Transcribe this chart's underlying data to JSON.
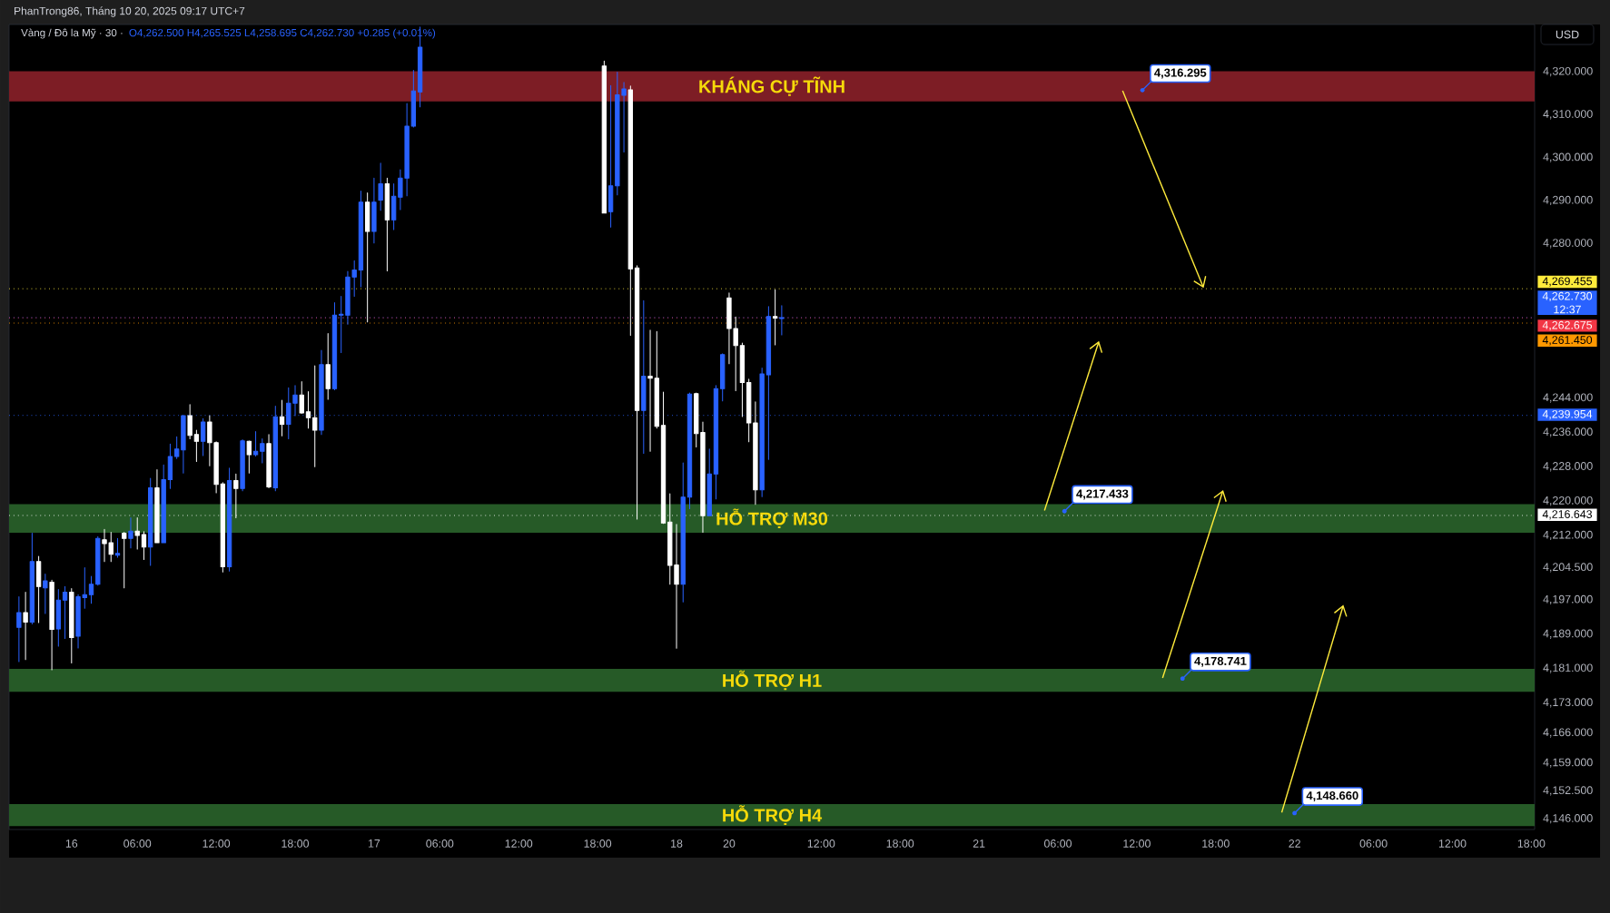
{
  "chart_data": {
    "type": "candlestick",
    "title": "Vàng / Đô la Mỹ · 30 ·",
    "subtitle": "O4,262.500 H4,265.525 L4,258.695 C4,262.730 +0.285 (+0.01%)",
    "categories": [
      null,
      null,
      null,
      null,
      null,
      null,
      null,
      null,
      null,
      "16",
      null,
      null,
      null,
      null,
      null,
      null,
      null,
      null,
      null,
      "06:00",
      null,
      null,
      null,
      null,
      null,
      null,
      null,
      null,
      null,
      null,
      null,
      "12:00",
      null,
      null,
      null,
      null,
      null,
      null,
      null,
      null,
      null,
      null,
      null,
      "18:00",
      null,
      null,
      null,
      null,
      null,
      null,
      null,
      null,
      null,
      null,
      null,
      "17",
      null,
      null,
      null,
      null,
      null,
      null,
      null,
      null,
      null,
      "06:00",
      null,
      null,
      null,
      null,
      null,
      null,
      null,
      null,
      null,
      null,
      null,
      "12:00",
      null,
      null,
      null,
      null,
      null,
      null,
      null,
      null,
      null,
      null,
      null,
      "18:00",
      null,
      null,
      null,
      null,
      null,
      null,
      null,
      null,
      null,
      null,
      null,
      "18",
      null,
      null,
      null,
      null,
      null,
      null,
      null,
      "20",
      null,
      null,
      null,
      null,
      null,
      null,
      null,
      null,
      null,
      null,
      null,
      null,
      null,
      "12:00",
      null,
      null,
      null,
      null,
      null,
      null,
      null,
      null,
      null,
      null,
      null,
      "18:00",
      null,
      null,
      null,
      null,
      null,
      null,
      null,
      null,
      null,
      null,
      null,
      "21",
      null,
      null,
      null,
      null,
      null,
      null,
      null,
      null,
      null,
      null,
      null,
      "06:00",
      null,
      null,
      null,
      null,
      null,
      null,
      null,
      null,
      null,
      null,
      null,
      "12:00",
      null,
      null,
      null,
      null,
      null,
      null,
      null,
      null,
      null,
      null,
      null,
      "18:00",
      null,
      null,
      null,
      null,
      null,
      null,
      null,
      null,
      null,
      null,
      null,
      "22",
      null,
      null,
      null,
      null,
      null,
      null,
      null,
      null,
      null,
      null,
      null,
      "06:00",
      null,
      null,
      null,
      null,
      null,
      null,
      null,
      null,
      null,
      null,
      null,
      "12:00",
      null,
      null,
      null,
      null,
      null,
      null,
      null,
      null,
      null,
      null,
      null,
      "18:00"
    ],
    "ohlc": [
      null,
      [
        4190.6,
        4197.7,
        4182.6,
        4194.0
      ],
      [
        4194.0,
        4198.8,
        4183.1,
        4191.8
      ],
      [
        4191.8,
        4212.5,
        4191.4,
        4205.9
      ],
      [
        4205.9,
        4207.1,
        4191.7,
        4200.1
      ],
      [
        4199.8,
        4203.0,
        4193.8,
        4201.4
      ],
      [
        4201.1,
        4201.6,
        4180.7,
        4190.1
      ],
      [
        4190.2,
        4199.4,
        4186.2,
        4196.9
      ],
      [
        4196.9,
        4200.1,
        4188.0,
        4198.8
      ],
      [
        4198.8,
        4199.6,
        4182.3,
        4188.2
      ],
      [
        4188.5,
        4198.2,
        4185.8,
        4197.7
      ],
      [
        4197.5,
        4204.5,
        4195.0,
        4198.2
      ],
      [
        4198.2,
        4202.5,
        4196.2,
        4200.6
      ],
      [
        4200.6,
        4211.7,
        4200.4,
        4211.3
      ],
      [
        4211.0,
        4213.4,
        4205.9,
        4210.1
      ],
      [
        4210.3,
        4212.7,
        4205.9,
        4207.6
      ],
      [
        4207.4,
        4211.3,
        4206.9,
        4207.8
      ],
      [
        4212.5,
        4212.7,
        4199.8,
        4211.3
      ],
      [
        4211.3,
        4216.1,
        4209.1,
        4213.0
      ],
      [
        4213.0,
        4216.1,
        4208.8,
        4212.0
      ],
      [
        4212.2,
        4212.9,
        4206.4,
        4209.3
      ],
      [
        4209.3,
        4225.3,
        4205.0,
        4223.1
      ],
      [
        4223.1,
        4227.3,
        4210.3,
        4210.3
      ],
      [
        4210.3,
        4228.4,
        4210.3,
        4225.0
      ],
      [
        4225.0,
        4233.3,
        4222.9,
        4230.4
      ],
      [
        4230.4,
        4235.0,
        4229.9,
        4232.1
      ],
      [
        4231.9,
        4239.9,
        4226.5,
        4239.9
      ],
      [
        4239.9,
        4242.5,
        4234.5,
        4235.3
      ],
      [
        4235.5,
        4236.5,
        4229.2,
        4233.9
      ],
      [
        4233.9,
        4239.2,
        4230.6,
        4238.4
      ],
      [
        4238.4,
        4239.9,
        4228.2,
        4233.6
      ],
      [
        4233.6,
        4233.8,
        4221.9,
        4223.9
      ],
      [
        4224.0,
        4224.3,
        4203.5,
        4204.7
      ],
      [
        4204.7,
        4227.7,
        4203.7,
        4224.8
      ],
      [
        4224.8,
        4226.3,
        4216.1,
        4222.9
      ],
      [
        4222.9,
        4234.3,
        4222.4,
        4234.0
      ],
      [
        4233.9,
        4234.0,
        4226.5,
        4230.8
      ],
      [
        4230.8,
        4236.2,
        4230.5,
        4231.6
      ],
      [
        4231.6,
        4234.5,
        4228.9,
        4233.4
      ],
      [
        4233.4,
        4235.5,
        4223.1,
        4223.3
      ],
      [
        4223.1,
        4242.1,
        4222.4,
        4239.6
      ],
      [
        4239.6,
        4243.5,
        4235.2,
        4237.9
      ],
      [
        4237.9,
        4246.4,
        4234.5,
        4242.8
      ],
      [
        4242.8,
        4246.9,
        4239.9,
        4244.7
      ],
      [
        4244.7,
        4247.8,
        4240.4,
        4240.5
      ],
      [
        4240.8,
        4245.5,
        4237.0,
        4239.4
      ],
      [
        4239.4,
        4251.5,
        4228.0,
        4236.5
      ],
      [
        4236.5,
        4255.1,
        4235.5,
        4251.8
      ],
      [
        4251.8,
        4259.0,
        4243.7,
        4246.2
      ],
      [
        4246.2,
        4266.2,
        4245.9,
        4263.3
      ],
      [
        4263.3,
        4267.7,
        4254.6,
        4263.5
      ],
      [
        4263.3,
        4273.5,
        4261.2,
        4272.2
      ],
      [
        4272.2,
        4276.0,
        4267.7,
        4273.8
      ],
      [
        4273.8,
        4292.2,
        4269.9,
        4289.6
      ],
      [
        4289.6,
        4291.8,
        4261.7,
        4282.8
      ],
      [
        4282.8,
        4295.2,
        4280.1,
        4289.6
      ],
      [
        4290.1,
        4298.7,
        4287.7,
        4293.9
      ],
      [
        4293.9,
        4295.2,
        4273.6,
        4285.5
      ],
      [
        4285.5,
        4293.9,
        4283.2,
        4291.0
      ],
      [
        4290.8,
        4297.2,
        4287.9,
        4295.2
      ],
      [
        4295.2,
        4312.6,
        4291.1,
        4307.3
      ],
      [
        4307.3,
        4320.3,
        4307.1,
        4315.5
      ],
      [
        4315.3,
        4330.4,
        4311.8,
        4325.7
      ],
      null,
      null,
      null,
      null,
      null,
      null,
      null,
      null,
      null,
      null,
      null,
      null,
      null,
      null,
      null,
      null,
      null,
      null,
      null,
      null,
      null,
      null,
      null,
      null,
      null,
      null,
      null,
      [
        4321.3,
        4322.5,
        4287.1,
        4287.1
      ],
      [
        4287.4,
        4316.8,
        4283.8,
        4293.4
      ],
      [
        4293.4,
        4319.9,
        4291.3,
        4314.6
      ],
      [
        4314.5,
        4317.5,
        4301.3,
        4316.0
      ],
      [
        4315.8,
        4316.7,
        4258.6,
        4274.1
      ],
      [
        4274.3,
        4274.8,
        4215.8,
        4241.1
      ],
      [
        4241.1,
        4266.7,
        4231.1,
        4249.1
      ],
      [
        4249.1,
        4259.8,
        4231.6,
        4248.6
      ],
      [
        4248.6,
        4259.5,
        4237.0,
        4237.4
      ],
      [
        4237.6,
        4245.4,
        4214.8,
        4214.9
      ],
      [
        4215.1,
        4221.7,
        4200.6,
        4205.0
      ],
      [
        4205.1,
        4214.6,
        4185.7,
        4200.6
      ],
      [
        4200.6,
        4228.9,
        4196.5,
        4220.9
      ],
      [
        4220.9,
        4245.2,
        4218.2,
        4244.9
      ],
      [
        4245.0,
        4245.2,
        4232.6,
        4235.7
      ],
      [
        4236.0,
        4238.4,
        4212.7,
        4216.6
      ],
      [
        4216.6,
        4232.1,
        4216.6,
        4226.3
      ],
      [
        4226.3,
        4246.9,
        4220.5,
        4246.2
      ],
      [
        4246.2,
        4254.3,
        4243.3,
        4254.1
      ],
      [
        4267.3,
        4268.5,
        4252.0,
        4260.2
      ],
      [
        4260.2,
        4262.9,
        4245.7,
        4256.2
      ],
      [
        4256.2,
        4256.8,
        4239.7,
        4247.6
      ],
      [
        4247.6,
        4248.4,
        4233.8,
        4238.2
      ],
      [
        4238.2,
        4243.1,
        4219.2,
        4222.6
      ],
      [
        4222.6,
        4251.0,
        4221.0,
        4249.6
      ],
      [
        4249.4,
        4265.3,
        4229.7,
        4263.0
      ],
      [
        4263.0,
        4269.2,
        4256.4,
        4262.6
      ],
      [
        4262.5,
        4265.525,
        4258.695,
        4262.73
      ],
      null,
      null,
      null,
      null,
      null,
      null,
      null,
      null,
      null,
      null,
      null,
      null,
      null,
      null,
      null,
      null,
      null,
      null,
      null,
      null,
      null,
      null,
      null,
      null,
      null,
      null,
      null,
      null,
      null,
      null,
      null,
      null,
      null,
      null,
      null,
      null,
      null,
      null,
      null,
      null,
      null,
      null,
      null,
      null,
      null,
      null,
      null,
      null,
      null,
      null,
      null,
      null,
      null,
      null,
      null,
      null,
      null,
      null,
      null,
      null,
      null,
      null,
      null,
      null,
      null,
      null,
      null,
      null,
      null,
      null,
      null,
      null,
      null,
      null,
      null,
      null,
      null,
      null,
      null,
      null,
      null,
      null,
      null,
      null,
      null,
      null,
      null,
      null,
      null,
      null,
      null,
      null,
      null,
      null,
      null,
      null,
      null,
      null,
      null,
      null,
      null,
      null,
      null,
      null,
      null,
      null,
      null,
      null,
      null,
      null,
      null,
      null,
      null,
      null
    ],
    "colors": [
      null,
      "#2962ff",
      "#ffffff",
      "#2962ff",
      "#ffffff",
      "#2962ff",
      "#ffffff",
      "#2962ff",
      "#2962ff",
      "#ffffff",
      "#2962ff",
      "#2962ff",
      "#2962ff",
      "#2962ff",
      "#ffffff",
      "#ffffff",
      "#2962ff",
      "#ffffff",
      "#2962ff",
      "#ffffff",
      "#ffffff",
      "#2962ff",
      "#ffffff",
      "#2962ff",
      "#2962ff",
      "#2962ff",
      "#2962ff",
      "#ffffff",
      "#ffffff",
      "#2962ff",
      "#ffffff",
      "#ffffff",
      "#ffffff",
      "#2962ff",
      "#ffffff",
      "#2962ff",
      "#ffffff",
      "#2962ff",
      "#2962ff",
      "#ffffff",
      "#2962ff",
      "#ffffff",
      "#2962ff",
      "#2962ff",
      "#ffffff",
      "#ffffff",
      "#ffffff",
      "#2962ff",
      "#ffffff",
      "#2962ff",
      "#2962ff",
      "#2962ff",
      "#2962ff",
      "#2962ff",
      "#ffffff",
      "#2962ff",
      "#2962ff",
      "#ffffff",
      "#2962ff",
      "#2962ff",
      "#2962ff",
      "#2962ff",
      "#2962ff",
      null,
      null,
      null,
      null,
      null,
      null,
      null,
      null,
      null,
      null,
      null,
      null,
      null,
      null,
      null,
      null,
      null,
      null,
      null,
      null,
      null,
      null,
      null,
      null,
      null,
      null,
      null,
      "#ffffff",
      "#2962ff",
      "#2962ff",
      "#2962ff",
      "#ffffff",
      "#ffffff",
      "#2962ff",
      "#ffffff",
      "#ffffff",
      "#ffffff",
      "#ffffff",
      "#ffffff",
      "#2962ff",
      "#2962ff",
      "#ffffff",
      "#ffffff",
      "#2962ff",
      "#2962ff",
      "#2962ff",
      "#ffffff",
      "#ffffff",
      "#ffffff",
      "#ffffff",
      "#ffffff",
      "#2962ff",
      "#2962ff",
      "#ffffff",
      "#2962ff",
      null,
      null,
      null,
      null,
      null,
      null,
      null,
      null,
      null,
      null,
      null,
      null,
      null,
      null,
      null,
      null,
      null,
      null,
      null,
      null,
      null,
      null,
      null,
      null,
      null,
      null,
      null,
      null,
      null,
      null,
      null,
      null,
      null,
      null,
      null,
      null,
      null,
      null,
      null,
      null,
      null,
      null,
      null,
      null,
      null,
      null,
      null,
      null,
      null,
      null,
      null,
      null,
      null,
      null,
      null,
      null,
      null,
      null,
      null,
      null,
      null,
      null,
      null,
      null,
      null,
      null,
      null,
      null,
      null,
      null,
      null,
      null,
      null,
      null,
      null,
      null,
      null,
      null,
      null,
      null,
      null,
      null,
      null,
      null,
      null,
      null,
      null,
      null,
      null,
      null,
      null,
      null,
      null,
      null,
      null,
      null,
      null,
      null,
      null,
      null,
      null,
      null,
      null,
      null,
      null,
      null,
      null,
      null,
      null,
      null,
      null,
      null,
      null,
      null
    ],
    "ylim": [
      4143.5,
      4331
    ],
    "yticks": [
      {
        "value": 4146,
        "label": "4,146.000"
      },
      {
        "value": 4152.5,
        "label": "4,152.500"
      },
      {
        "value": 4159,
        "label": "4,159.000"
      },
      {
        "value": 4166,
        "label": "4,166.000"
      },
      {
        "value": 4173,
        "label": "4,173.000"
      },
      {
        "value": 4181,
        "label": "4,181.000"
      },
      {
        "value": 4189,
        "label": "4,189.000"
      },
      {
        "value": 4197,
        "label": "4,197.000"
      },
      {
        "value": 4204.5,
        "label": "4,204.500"
      },
      {
        "value": 4212,
        "label": "4,212.000"
      },
      {
        "value": 4220,
        "label": "4,220.000"
      },
      {
        "value": 4228,
        "label": "4,228.000"
      },
      {
        "value": 4236,
        "label": "4,236.000"
      },
      {
        "value": 4244,
        "label": "4,244.000"
      },
      {
        "value": 4280,
        "label": "4,280.000"
      },
      {
        "value": 4290,
        "label": "4,290.000"
      },
      {
        "value": 4300,
        "label": "4,300.000"
      },
      {
        "value": 4310,
        "label": "4,310.000"
      },
      {
        "value": 4320,
        "label": "4,320.000"
      }
    ],
    "bands": [
      {
        "axis": "y",
        "from": 4313.1,
        "to": 4320.1,
        "label": "KHÁNG CỰ TĨNH",
        "color": "#7d1d25"
      },
      {
        "axis": "y",
        "from": 4212.6,
        "to": 4219.3,
        "label": "HỖ TRỢ M30",
        "color": "#265a27"
      },
      {
        "axis": "y",
        "from": 4175.6,
        "to": 4180.9,
        "label": "HỖ TRỢ H1",
        "color": "#265a27"
      },
      {
        "axis": "y",
        "from": 4144.3,
        "to": 4149.4,
        "label": "HỖ TRỢ H4",
        "color": "#265a27"
      }
    ],
    "ref_lines": [
      {
        "axis": "y",
        "value": 4269.455,
        "label": "4,269.455",
        "color": "#ffeb3b",
        "line_style": "dotted"
      },
      {
        "axis": "y",
        "value": 4262.73,
        "label": "4,262.730 12:37",
        "color": "#2962ff",
        "line_style": "dotted"
      },
      {
        "axis": "y",
        "value": 4262.675,
        "label": "4,262.675",
        "color": "#f23645",
        "line_style": "dotted"
      },
      {
        "axis": "y",
        "value": 4261.45,
        "label": "4,261.450",
        "color": "#ff9800",
        "line_style": "dotted"
      },
      {
        "axis": "y",
        "value": 4239.954,
        "label": "4,239.954",
        "color": "#2962ff",
        "line_style": "dotted"
      },
      {
        "axis": "y",
        "value": 4216.643,
        "label": "4,216.643",
        "color": "#ffffff",
        "line_style": "dotted"
      }
    ],
    "annotations": [
      "PhanTrong86, Tháng 10 20, 2025 09:17 UTC+7",
      "USD",
      "4,316.295",
      "4,217.433",
      "4,178.741",
      "4,148.660"
    ]
  }
}
